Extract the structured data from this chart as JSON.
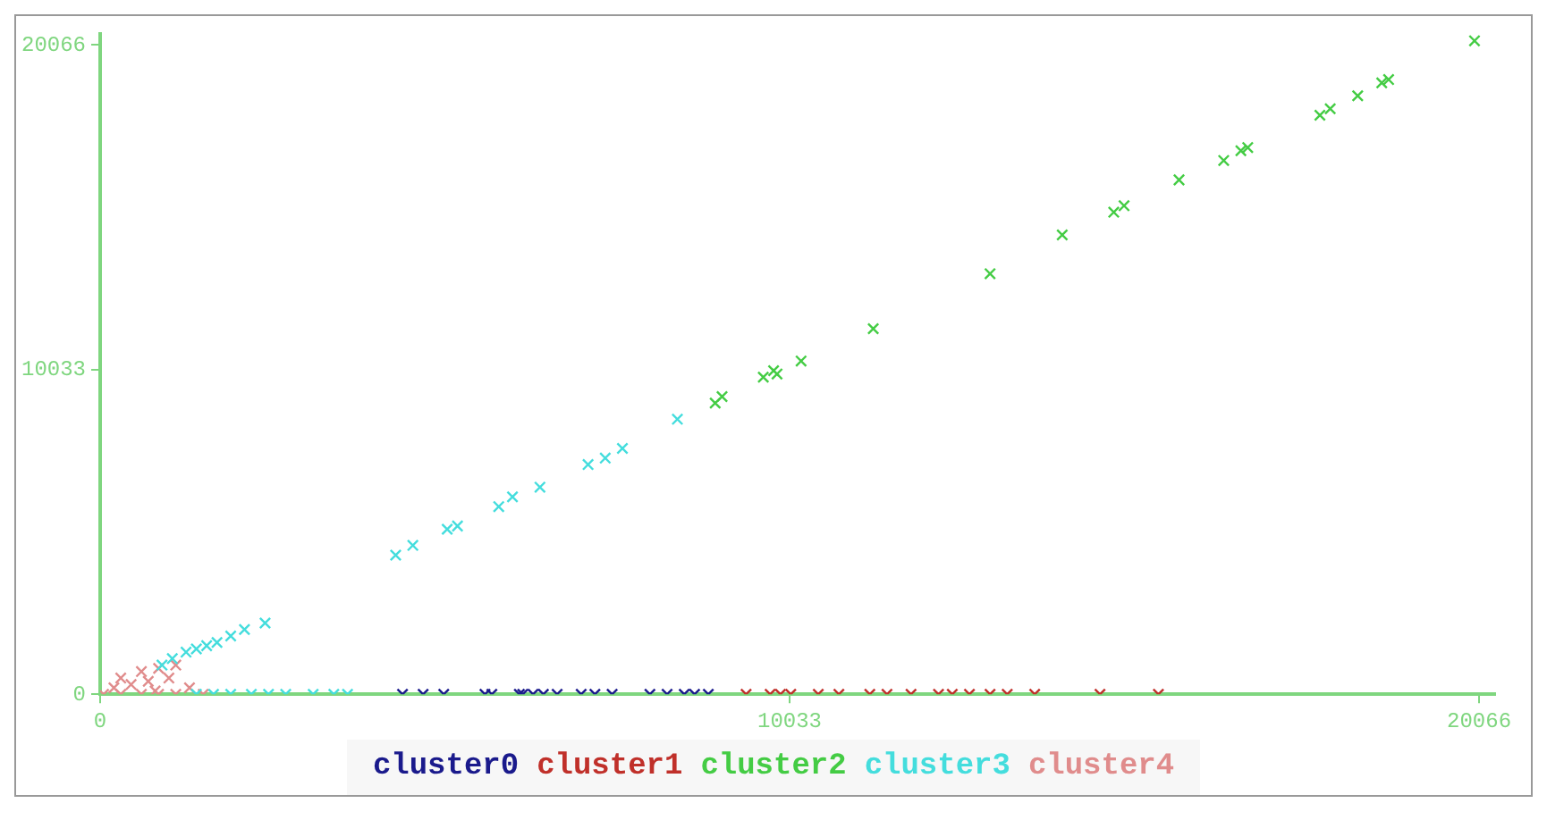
{
  "chart_data": {
    "type": "scatter",
    "xlim": [
      0,
      20300
    ],
    "ylim": [
      0,
      20400
    ],
    "xticks": [
      0,
      10033,
      20066
    ],
    "yticks": [
      0,
      10033,
      20066
    ],
    "grid": false,
    "legend": "bottom",
    "marker": "cross",
    "series": [
      {
        "name": "cluster0",
        "color": "#1a1a8c",
        "x": [
          4400,
          4700,
          5000,
          5600,
          5700,
          6100,
          6150,
          6300,
          6450,
          6650,
          7000,
          7200,
          7450,
          8000,
          8250,
          8500,
          8650,
          8850
        ],
        "values": [
          0,
          0,
          0,
          0,
          0,
          0,
          0,
          0,
          0,
          0,
          0,
          0,
          0,
          0,
          0,
          0,
          0,
          0
        ]
      },
      {
        "name": "cluster1",
        "color": "#c0302a",
        "x": [
          9400,
          9750,
          9900,
          10050,
          10450,
          10750,
          11200,
          11450,
          11800,
          12200,
          12400,
          12650,
          12950,
          13200,
          13600,
          14550,
          15400
        ],
        "values": [
          0,
          0,
          0,
          0,
          0,
          0,
          0,
          0,
          0,
          0,
          0,
          0,
          0,
          0,
          0,
          0,
          0
        ]
      },
      {
        "name": "cluster2",
        "color": "#44cc44",
        "x": [
          20000,
          17750,
          17900,
          18300,
          18650,
          18750,
          16350,
          16700,
          16600,
          15700,
          14750,
          14900,
          14000,
          12950,
          11250,
          10200,
          9800,
          9650,
          9850,
          8950,
          9050
        ],
        "values": [
          20200,
          17900,
          18100,
          18500,
          18900,
          19000,
          16500,
          16900,
          16800,
          15900,
          14900,
          15100,
          14200,
          13000,
          11300,
          10300,
          10000,
          9800,
          9900,
          9000,
          9200
        ]
      },
      {
        "name": "cluster3",
        "color": "#44dddd",
        "x": [
          4300,
          4550,
          5050,
          5200,
          5800,
          6000,
          6400,
          7100,
          7350,
          7600,
          8400,
          900,
          1050,
          1250,
          1400,
          1550,
          1700,
          1900,
          2100,
          2400,
          1400,
          1650,
          1900,
          2200,
          2450,
          2700,
          3100,
          3400,
          3600
        ],
        "values": [
          4300,
          4600,
          5100,
          5200,
          5800,
          6100,
          6400,
          7100,
          7300,
          7600,
          8500,
          900,
          1100,
          1300,
          1400,
          1500,
          1600,
          1800,
          2000,
          2200,
          0,
          0,
          0,
          0,
          0,
          0,
          0,
          0,
          0
        ]
      },
      {
        "name": "cluster4",
        "color": "#e08c8c",
        "x": [
          50,
          300,
          600,
          850,
          1100,
          1500,
          200,
          450,
          700,
          1000,
          300,
          600,
          850,
          1100,
          1300,
          800
        ],
        "values": [
          0,
          0,
          0,
          0,
          0,
          0,
          200,
          300,
          400,
          500,
          500,
          700,
          800,
          900,
          200,
          100
        ]
      }
    ]
  }
}
